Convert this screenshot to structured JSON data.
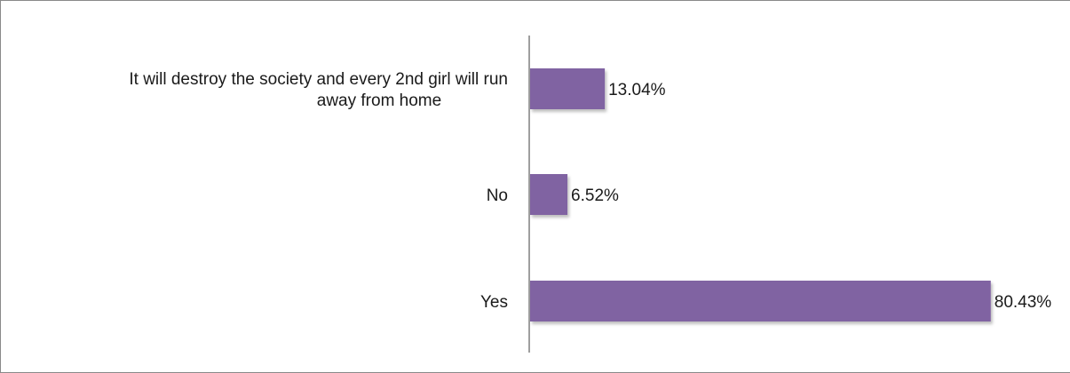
{
  "chart_data": {
    "type": "bar",
    "orientation": "horizontal",
    "categories": [
      [
        "It will destroy the society and every 2nd girl will run",
        "away from home"
      ],
      [
        "No"
      ],
      [
        "Yes"
      ]
    ],
    "values": [
      13.04,
      6.52,
      80.43
    ],
    "value_labels": [
      "13.04%",
      "6.52%",
      "80.43%"
    ],
    "xlim": [
      0,
      100
    ],
    "grid": false,
    "legend": "none",
    "bar_color": "#8064a2"
  }
}
